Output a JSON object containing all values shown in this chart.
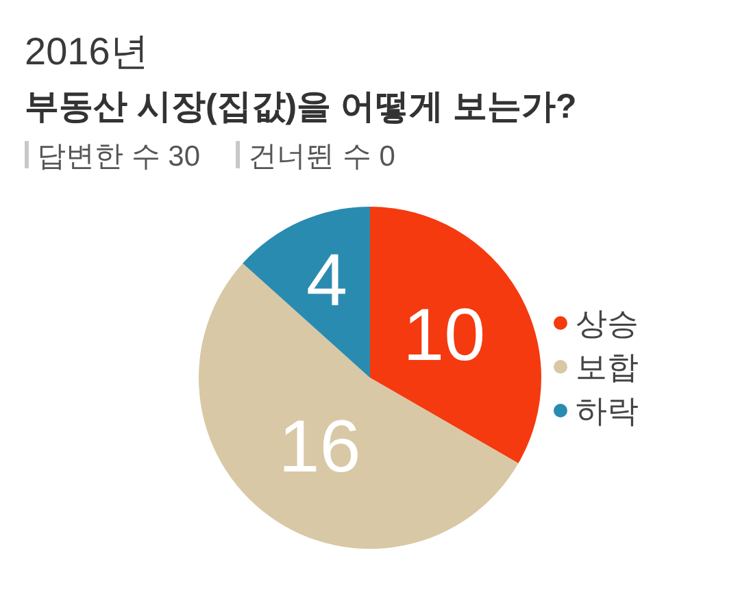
{
  "chart_data": {
    "type": "pie",
    "title": "2016년",
    "subtitle": "부동산 시장(집값)을 어떻게 보는가?",
    "annotations": [
      "답변한 수 30",
      "건너뛴 수 0"
    ],
    "categories": [
      "상승",
      "보합",
      "하락"
    ],
    "values": [
      10,
      16,
      4
    ],
    "colors": [
      "#f53a0f",
      "#d9c8a5",
      "#2a8bb0"
    ],
    "data_labels": true,
    "legend": "right"
  }
}
